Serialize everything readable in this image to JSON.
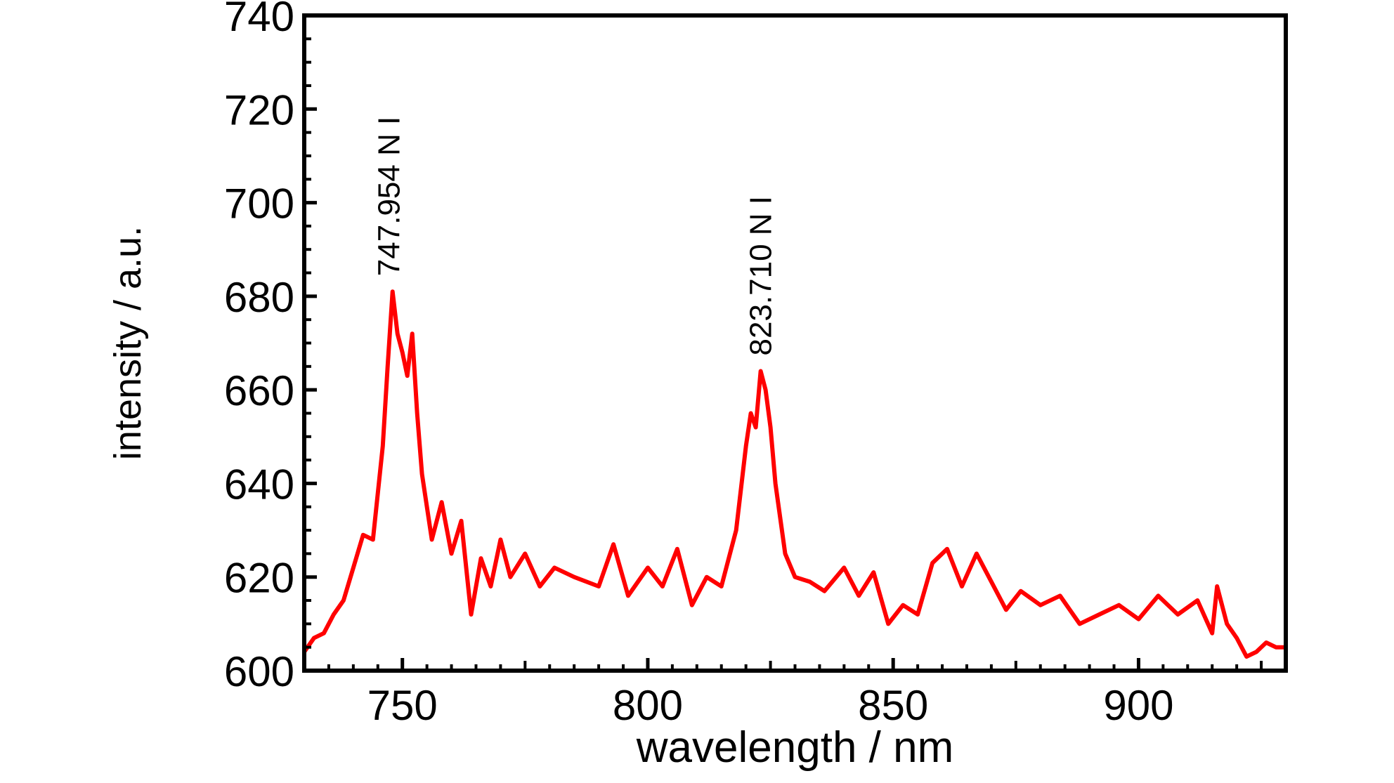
{
  "chart_data": {
    "type": "line",
    "title": "",
    "xlabel": "wavelength / nm",
    "ylabel": "intensity / a.u.",
    "xlim": [
      730,
      930
    ],
    "ylim": [
      600,
      740
    ],
    "x_ticks": [
      750,
      800,
      850,
      900
    ],
    "y_ticks": [
      600,
      620,
      640,
      660,
      680,
      700,
      720,
      740
    ],
    "grid": false,
    "legend": "none",
    "annotations": [
      {
        "text": "747.954 N I",
        "x": 747.954,
        "y": 681
      },
      {
        "text": "823.710 N I",
        "x": 823.71,
        "y": 664
      }
    ],
    "series": [
      {
        "color": "#ff0000",
        "x": [
          730,
          732,
          734,
          736,
          738,
          740,
          742,
          744,
          746,
          747,
          748,
          749,
          750,
          751,
          752,
          753,
          754,
          756,
          758,
          760,
          762,
          764,
          766,
          768,
          770,
          772,
          775,
          778,
          781,
          785,
          790,
          793,
          796,
          800,
          803,
          806,
          809,
          812,
          815,
          818,
          820,
          821,
          822,
          823,
          824,
          825,
          826,
          828,
          830,
          833,
          836,
          840,
          843,
          846,
          849,
          852,
          855,
          858,
          861,
          864,
          867,
          870,
          873,
          876,
          880,
          884,
          888,
          892,
          896,
          900,
          904,
          908,
          912,
          915,
          916,
          918,
          920,
          922,
          924,
          926,
          928,
          930
        ],
        "y": [
          604,
          607,
          608,
          612,
          615,
          622,
          629,
          628,
          648,
          665,
          681,
          672,
          668,
          663,
          672,
          655,
          642,
          628,
          636,
          625,
          632,
          612,
          624,
          618,
          628,
          620,
          625,
          618,
          622,
          620,
          618,
          627,
          616,
          622,
          618,
          626,
          614,
          620,
          618,
          630,
          648,
          655,
          652,
          664,
          660,
          652,
          640,
          625,
          620,
          619,
          617,
          622,
          616,
          621,
          610,
          614,
          612,
          623,
          626,
          618,
          625,
          619,
          613,
          617,
          614,
          616,
          610,
          612,
          614,
          611,
          616,
          612,
          615,
          608,
          618,
          610,
          607,
          603,
          604,
          606,
          605,
          605
        ]
      }
    ]
  }
}
